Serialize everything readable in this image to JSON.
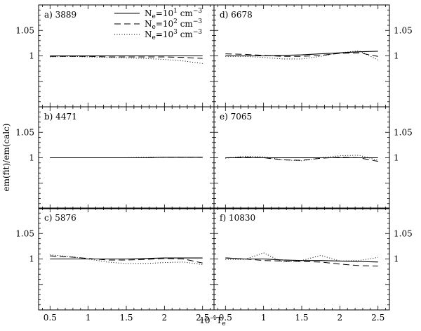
{
  "chart_data": {
    "type": "line",
    "ylabel": "em(fit)/em(calc)",
    "xlabel_parts": {
      "main": "10",
      "sup": "-4",
      "var": "T",
      "sub": "e"
    },
    "xlim": [
      0.35,
      2.65
    ],
    "ylim": [
      0.9,
      1.1
    ],
    "x_ticks": [
      0.5,
      1,
      1.5,
      2,
      2.5
    ],
    "x_tick_labels": [
      "0.5",
      "1",
      "1.5",
      "2",
      "2.5"
    ],
    "y_tick_labels": [
      {
        "value": 1.05,
        "label": "1.05"
      },
      {
        "value": 1.0,
        "label": "1"
      }
    ],
    "legend": [
      {
        "style": "solid",
        "pre": "N",
        "sub": "e",
        "mid": "=10",
        "sup": "1",
        "post": " cm",
        "unitsup": "−3"
      },
      {
        "style": "dashed",
        "pre": "N",
        "sub": "e",
        "mid": "=10",
        "sup": "2",
        "post": " cm",
        "unitsup": "−3"
      },
      {
        "style": "dotted",
        "pre": "N",
        "sub": "e",
        "mid": "=10",
        "sup": "3",
        "post": " cm",
        "unitsup": "−3"
      }
    ],
    "x": [
      0.5,
      0.75,
      1.0,
      1.25,
      1.5,
      1.75,
      2.0,
      2.25,
      2.5
    ],
    "panels": [
      {
        "label": "a) 3889",
        "series": [
          {
            "style": "solid",
            "values": [
              1.0,
              1.0,
              1.0,
              1.0,
              1.0,
              1.0,
              1.0,
              1.0,
              1.0
            ]
          },
          {
            "style": "dashed",
            "values": [
              0.999,
              0.999,
              0.999,
              0.998,
              0.998,
              0.998,
              0.998,
              0.997,
              0.995
            ]
          },
          {
            "style": "dotted",
            "values": [
              0.998,
              0.999,
              0.998,
              0.997,
              0.996,
              0.995,
              0.993,
              0.99,
              0.985
            ]
          }
        ]
      },
      {
        "label": "d) 6678",
        "series": [
          {
            "style": "solid",
            "values": [
              1.0,
              1.0,
              1.0,
              1.001,
              1.002,
              1.004,
              1.006,
              1.008,
              1.009
            ]
          },
          {
            "style": "dashed",
            "values": [
              1.004,
              1.003,
              1.001,
              0.999,
              0.999,
              1.001,
              1.005,
              1.006,
              0.999
            ]
          },
          {
            "style": "dotted",
            "values": [
              0.999,
              0.999,
              0.997,
              0.994,
              0.994,
              0.999,
              1.006,
              1.01,
              0.992
            ]
          }
        ]
      },
      {
        "label": "b) 4471",
        "series": [
          {
            "style": "solid",
            "values": [
              1.0,
              1.0,
              1.0,
              1.0,
              1.0,
              1.0,
              1.001,
              1.001,
              1.001
            ]
          },
          {
            "style": "dashed",
            "values": [
              1.0,
              1.0,
              1.0,
              1.0,
              1.0,
              1.0,
              1.001,
              1.001,
              1.001
            ]
          },
          {
            "style": "dotted",
            "values": [
              1.0,
              1.0,
              1.0,
              1.0,
              1.0,
              1.001,
              1.001,
              1.001,
              1.001
            ]
          }
        ]
      },
      {
        "label": "e) 7065",
        "series": [
          {
            "style": "solid",
            "values": [
              1.0,
              1.0,
              1.0,
              1.0,
              1.0,
              1.0,
              1.0,
              1.0,
              1.0
            ]
          },
          {
            "style": "dashed",
            "values": [
              1.0,
              1.001,
              1.0,
              0.996,
              0.995,
              0.999,
              1.001,
              1.0,
              0.993
            ]
          },
          {
            "style": "dotted",
            "values": [
              0.999,
              1.003,
              1.002,
              0.996,
              0.994,
              1.0,
              1.004,
              1.005,
              0.995
            ]
          }
        ]
      },
      {
        "label": "c) 5876",
        "series": [
          {
            "style": "solid",
            "values": [
              1.0,
              1.0,
              1.0,
              1.0,
              1.0,
              1.001,
              1.002,
              1.002,
              1.002
            ]
          },
          {
            "style": "dashed",
            "values": [
              1.006,
              1.004,
              1.001,
              0.998,
              0.998,
              0.999,
              1.001,
              1.0,
              0.992
            ]
          },
          {
            "style": "dotted",
            "values": [
              1.008,
              1.005,
              1.0,
              0.994,
              0.991,
              0.991,
              0.993,
              0.994,
              0.989
            ]
          }
        ]
      },
      {
        "label": "f) 10830",
        "series": [
          {
            "style": "solid",
            "values": [
              1.002,
              1.0,
              1.0,
              0.998,
              0.997,
              0.997,
              0.996,
              0.995,
              0.994
            ]
          },
          {
            "style": "dashed",
            "values": [
              1.002,
              1.0,
              0.997,
              0.996,
              0.995,
              0.994,
              0.99,
              0.987,
              0.986
            ]
          },
          {
            "style": "dotted",
            "values": [
              0.999,
              0.999,
              1.012,
              0.994,
              0.997,
              1.007,
              0.996,
              0.997,
              1.003
            ]
          }
        ]
      }
    ]
  }
}
